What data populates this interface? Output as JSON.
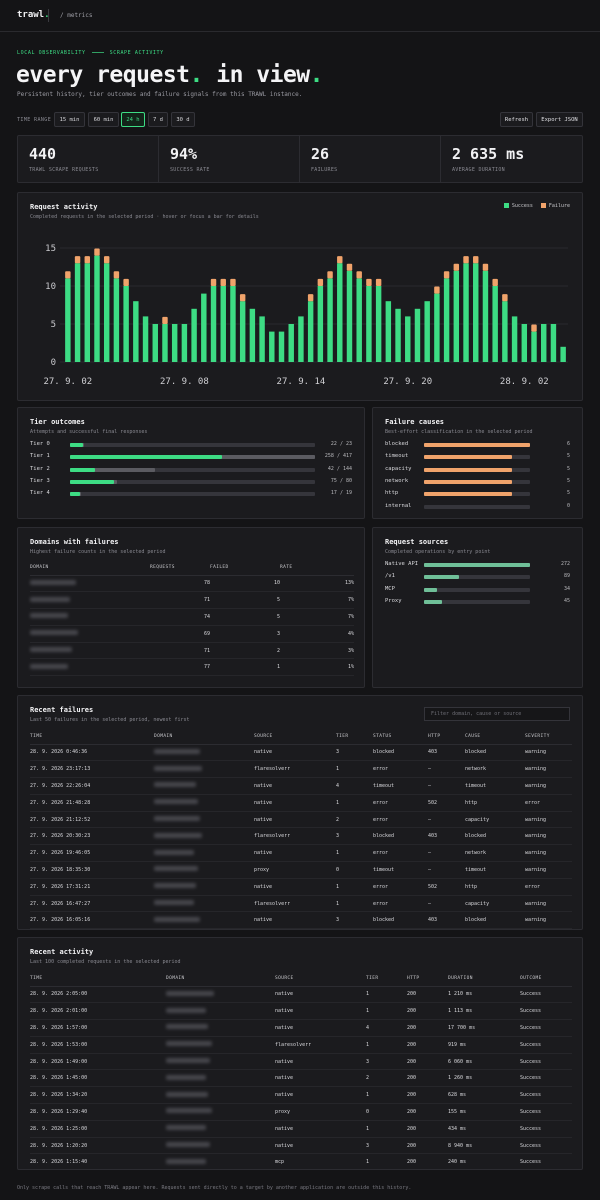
{
  "brand": {
    "name": "trawl",
    "crumb": "/ metrics"
  },
  "hero": {
    "eyebrow_left": "LOCAL OBSERVABILITY",
    "eyebrow_right": "SCRAPE ACTIVITY",
    "title_a": "every request",
    "title_b": " in view",
    "dot": ".",
    "subtitle": "Persistent history, tier outcomes and failure signals from this TRAWL instance."
  },
  "time_range": {
    "label": "TIME RANGE",
    "options": [
      "15 min",
      "60 min",
      "24 h",
      "7 d",
      "30 d"
    ],
    "selected": "24 h"
  },
  "actions": {
    "refresh": "Refresh",
    "export": "Export JSON"
  },
  "stats": [
    {
      "value": "440",
      "label": "TRAWL SCRAPE REQUESTS",
      "color": "#f2f2f4"
    },
    {
      "value": "94%",
      "label": "SUCCESS RATE",
      "color": "#3ddc84"
    },
    {
      "value": "26",
      "label": "FAILURES",
      "color": "#f0a36b"
    },
    {
      "value": "2 635 ms",
      "label": "AVERAGE DURATION",
      "color": "#f2f2f4"
    }
  ],
  "activity": {
    "title": "Request activity",
    "subtitle": "Completed requests in the selected period · hover or focus a bar for details",
    "legend_success": "Success",
    "legend_failure": "Failure"
  },
  "chart_data": {
    "type": "bar",
    "stacked": true,
    "ylim": [
      0,
      15
    ],
    "yticks": [
      0,
      5,
      10,
      15
    ],
    "xtick_labels": [
      "27. 9. 02",
      "27. 9. 08",
      "27. 9. 14",
      "27. 9. 20",
      "28. 9. 02"
    ],
    "xtick_positions": [
      0,
      12,
      24,
      35,
      47
    ],
    "colors": {
      "success": "#3ddc84",
      "failure": "#f0a36b"
    },
    "series": [
      {
        "name": "Success",
        "values": [
          11,
          13,
          13,
          14,
          13,
          11,
          10,
          8,
          6,
          5,
          5,
          5,
          5,
          7,
          9,
          10,
          10,
          10,
          8,
          7,
          6,
          4,
          4,
          5,
          6,
          8,
          10,
          11,
          13,
          12,
          11,
          10,
          10,
          8,
          7,
          6,
          7,
          8,
          9,
          11,
          12,
          13,
          13,
          12,
          10,
          8,
          6,
          5,
          4,
          5,
          5,
          2
        ]
      },
      {
        "name": "Failure",
        "values": [
          1,
          1,
          1,
          1,
          1,
          1,
          1,
          0,
          0,
          0,
          1,
          0,
          0,
          0,
          0,
          1,
          1,
          1,
          1,
          0,
          0,
          0,
          0,
          0,
          0,
          1,
          1,
          1,
          1,
          1,
          1,
          1,
          1,
          0,
          0,
          0,
          0,
          0,
          1,
          1,
          1,
          1,
          1,
          1,
          1,
          1,
          0,
          0,
          1,
          0,
          0,
          0
        ]
      }
    ]
  },
  "tiers": {
    "title": "Tier outcomes",
    "subtitle": "Attempts and successful final responses",
    "rows": [
      {
        "label": "Tier 0",
        "ok": 22,
        "total": 23,
        "value": "22 / 23"
      },
      {
        "label": "Tier 1",
        "ok": 258,
        "total": 417,
        "value": "258 / 417"
      },
      {
        "label": "Tier 2",
        "ok": 42,
        "total": 144,
        "value": "42 / 144"
      },
      {
        "label": "Tier 3",
        "ok": 75,
        "total": 80,
        "value": "75 / 80"
      },
      {
        "label": "Tier 4",
        "ok": 17,
        "total": 19,
        "value": "17 / 19"
      }
    ]
  },
  "causes": {
    "title": "Failure causes",
    "subtitle": "Best-effort classification in the selected period",
    "max": 6,
    "rows": [
      {
        "label": "blocked",
        "count": 6,
        "value": "6"
      },
      {
        "label": "timeout",
        "count": 5,
        "value": "5"
      },
      {
        "label": "capacity",
        "count": 5,
        "value": "5"
      },
      {
        "label": "network",
        "count": 5,
        "value": "5"
      },
      {
        "label": "http",
        "count": 5,
        "value": "5"
      },
      {
        "label": "internal",
        "count": 0,
        "value": "0"
      }
    ]
  },
  "domains": {
    "title": "Domains with failures",
    "subtitle": "Highest failure counts in the selected period",
    "headers": [
      "DOMAIN",
      "REQUESTS",
      "FAILED",
      "RATE"
    ],
    "rows": [
      {
        "requests": "78",
        "failed": "10",
        "rate": "13%"
      },
      {
        "requests": "71",
        "failed": "5",
        "rate": "7%"
      },
      {
        "requests": "74",
        "failed": "5",
        "rate": "7%"
      },
      {
        "requests": "69",
        "failed": "3",
        "rate": "4%"
      },
      {
        "requests": "71",
        "failed": "2",
        "rate": "3%"
      },
      {
        "requests": "77",
        "failed": "1",
        "rate": "1%"
      }
    ]
  },
  "sources": {
    "title": "Request sources",
    "subtitle": "Completed operations by entry point",
    "max": 272,
    "rows": [
      {
        "label": "Native API",
        "count": 272,
        "value": "272"
      },
      {
        "label": "/v1",
        "count": 89,
        "value": "89"
      },
      {
        "label": "MCP",
        "count": 34,
        "value": "34"
      },
      {
        "label": "Proxy",
        "count": 45,
        "value": "45"
      }
    ]
  },
  "failures": {
    "title": "Recent failures",
    "subtitle": "Last 50 failures in the selected period, newest first",
    "filter_placeholder": "Filter domain, cause or source",
    "headers": [
      "TIME",
      "DOMAIN",
      "SOURCE",
      "TIER",
      "STATUS",
      "HTTP",
      "CAUSE",
      "SEVERITY"
    ],
    "rows": [
      {
        "time": "28. 9. 2026 0:46:36",
        "source": "native",
        "tier": "3",
        "status": "blocked",
        "http": "403",
        "cause": "blocked",
        "severity": "warning"
      },
      {
        "time": "27. 9. 2026 23:17:13",
        "source": "flaresolverr",
        "tier": "1",
        "status": "error",
        "http": "—",
        "cause": "network",
        "severity": "warning"
      },
      {
        "time": "27. 9. 2026 22:26:04",
        "source": "native",
        "tier": "4",
        "status": "timeout",
        "http": "—",
        "cause": "timeout",
        "severity": "warning"
      },
      {
        "time": "27. 9. 2026 21:48:28",
        "source": "native",
        "tier": "1",
        "status": "error",
        "http": "502",
        "cause": "http",
        "severity": "error"
      },
      {
        "time": "27. 9. 2026 21:12:52",
        "source": "native",
        "tier": "2",
        "status": "error",
        "http": "—",
        "cause": "capacity",
        "severity": "warning"
      },
      {
        "time": "27. 9. 2026 20:30:23",
        "source": "flaresolverr",
        "tier": "3",
        "status": "blocked",
        "http": "403",
        "cause": "blocked",
        "severity": "warning"
      },
      {
        "time": "27. 9. 2026 19:46:05",
        "source": "native",
        "tier": "1",
        "status": "error",
        "http": "—",
        "cause": "network",
        "severity": "warning"
      },
      {
        "time": "27. 9. 2026 18:35:30",
        "source": "proxy",
        "tier": "0",
        "status": "timeout",
        "http": "—",
        "cause": "timeout",
        "severity": "warning"
      },
      {
        "time": "27. 9. 2026 17:31:21",
        "source": "native",
        "tier": "1",
        "status": "error",
        "http": "502",
        "cause": "http",
        "severity": "error"
      },
      {
        "time": "27. 9. 2026 16:47:27",
        "source": "flaresolverr",
        "tier": "1",
        "status": "error",
        "http": "—",
        "cause": "capacity",
        "severity": "warning"
      },
      {
        "time": "27. 9. 2026 16:05:16",
        "source": "native",
        "tier": "3",
        "status": "blocked",
        "http": "403",
        "cause": "blocked",
        "severity": "warning"
      }
    ]
  },
  "recent": {
    "title": "Recent activity",
    "subtitle": "Last 100 completed requests in the selected period",
    "headers": [
      "TIME",
      "DOMAIN",
      "SOURCE",
      "TIER",
      "HTTP",
      "DURATION",
      "OUTCOME"
    ],
    "rows": [
      {
        "time": "28. 9. 2026 2:05:00",
        "source": "native",
        "tier": "1",
        "http": "200",
        "duration": "1 210 ms",
        "outcome": "Success"
      },
      {
        "time": "28. 9. 2026 2:01:00",
        "source": "native",
        "tier": "1",
        "http": "200",
        "duration": "1 113 ms",
        "outcome": "Success"
      },
      {
        "time": "28. 9. 2026 1:57:00",
        "source": "native",
        "tier": "4",
        "http": "200",
        "duration": "17 700 ms",
        "outcome": "Success"
      },
      {
        "time": "28. 9. 2026 1:53:00",
        "source": "flaresolverr",
        "tier": "1",
        "http": "200",
        "duration": "919 ms",
        "outcome": "Success"
      },
      {
        "time": "28. 9. 2026 1:49:00",
        "source": "native",
        "tier": "3",
        "http": "200",
        "duration": "6 060 ms",
        "outcome": "Success"
      },
      {
        "time": "28. 9. 2026 1:45:00",
        "source": "native",
        "tier": "2",
        "http": "200",
        "duration": "1 260 ms",
        "outcome": "Success"
      },
      {
        "time": "28. 9. 2026 1:34:20",
        "source": "native",
        "tier": "1",
        "http": "200",
        "duration": "628 ms",
        "outcome": "Success"
      },
      {
        "time": "28. 9. 2026 1:29:40",
        "source": "proxy",
        "tier": "0",
        "http": "200",
        "duration": "155 ms",
        "outcome": "Success"
      },
      {
        "time": "28. 9. 2026 1:25:00",
        "source": "native",
        "tier": "1",
        "http": "200",
        "duration": "434 ms",
        "outcome": "Success"
      },
      {
        "time": "28. 9. 2026 1:20:20",
        "source": "native",
        "tier": "3",
        "http": "200",
        "duration": "8 940 ms",
        "outcome": "Success"
      },
      {
        "time": "28. 9. 2026 1:15:40",
        "source": "mcp",
        "tier": "1",
        "http": "200",
        "duration": "240 ms",
        "outcome": "Success"
      }
    ]
  },
  "footnote": "Only scrape calls that reach TRAWL appear here. Requests sent directly to a target by another application are outside this history."
}
